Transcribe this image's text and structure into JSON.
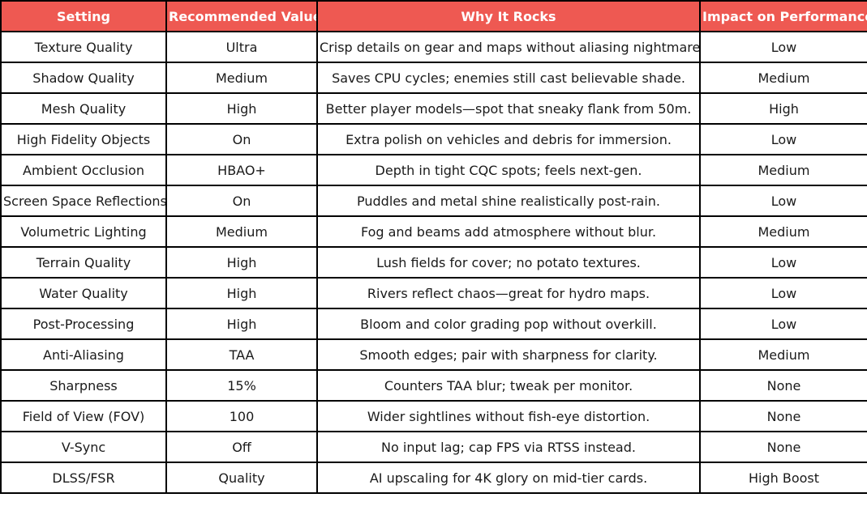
{
  "header_color": "#ee5952",
  "headers": [
    "Setting",
    "Recommended Value",
    "Why It Rocks",
    "Impact on Performance"
  ],
  "rows": [
    [
      "Texture Quality",
      "Ultra",
      "Crisp details on gear and maps without aliasing nightmares.",
      "Low"
    ],
    [
      "Shadow Quality",
      "Medium",
      "Saves CPU cycles; enemies still cast believable shade.",
      "Medium"
    ],
    [
      "Mesh Quality",
      "High",
      "Better player models—spot that sneaky flank from 50m.",
      "High"
    ],
    [
      "High Fidelity Objects",
      "On",
      "Extra polish on vehicles and debris for immersion.",
      "Low"
    ],
    [
      "Ambient Occlusion",
      "HBAO+",
      "Depth in tight CQC spots; feels next-gen.",
      "Medium"
    ],
    [
      "Screen Space Reflections",
      "On",
      "Puddles and metal shine realistically post-rain.",
      "Low"
    ],
    [
      "Volumetric Lighting",
      "Medium",
      "Fog and beams add atmosphere without blur.",
      "Medium"
    ],
    [
      "Terrain Quality",
      "High",
      "Lush fields for cover; no potato textures.",
      "Low"
    ],
    [
      "Water Quality",
      "High",
      "Rivers reflect chaos—great for hydro maps.",
      "Low"
    ],
    [
      "Post-Processing",
      "High",
      "Bloom and color grading pop without overkill.",
      "Low"
    ],
    [
      "Anti-Aliasing",
      "TAA",
      "Smooth edges; pair with sharpness for clarity.",
      "Medium"
    ],
    [
      "Sharpness",
      "15%",
      "Counters TAA blur; tweak per monitor.",
      "None"
    ],
    [
      "Field of View (FOV)",
      "100",
      "Wider sightlines without fish-eye distortion.",
      "None"
    ],
    [
      "V-Sync",
      "Off",
      "No input lag; cap FPS via RTSS instead.",
      "None"
    ],
    [
      "DLSS/FSR",
      "Quality",
      "AI upscaling for 4K glory on mid-tier cards.",
      "High Boost"
    ]
  ]
}
